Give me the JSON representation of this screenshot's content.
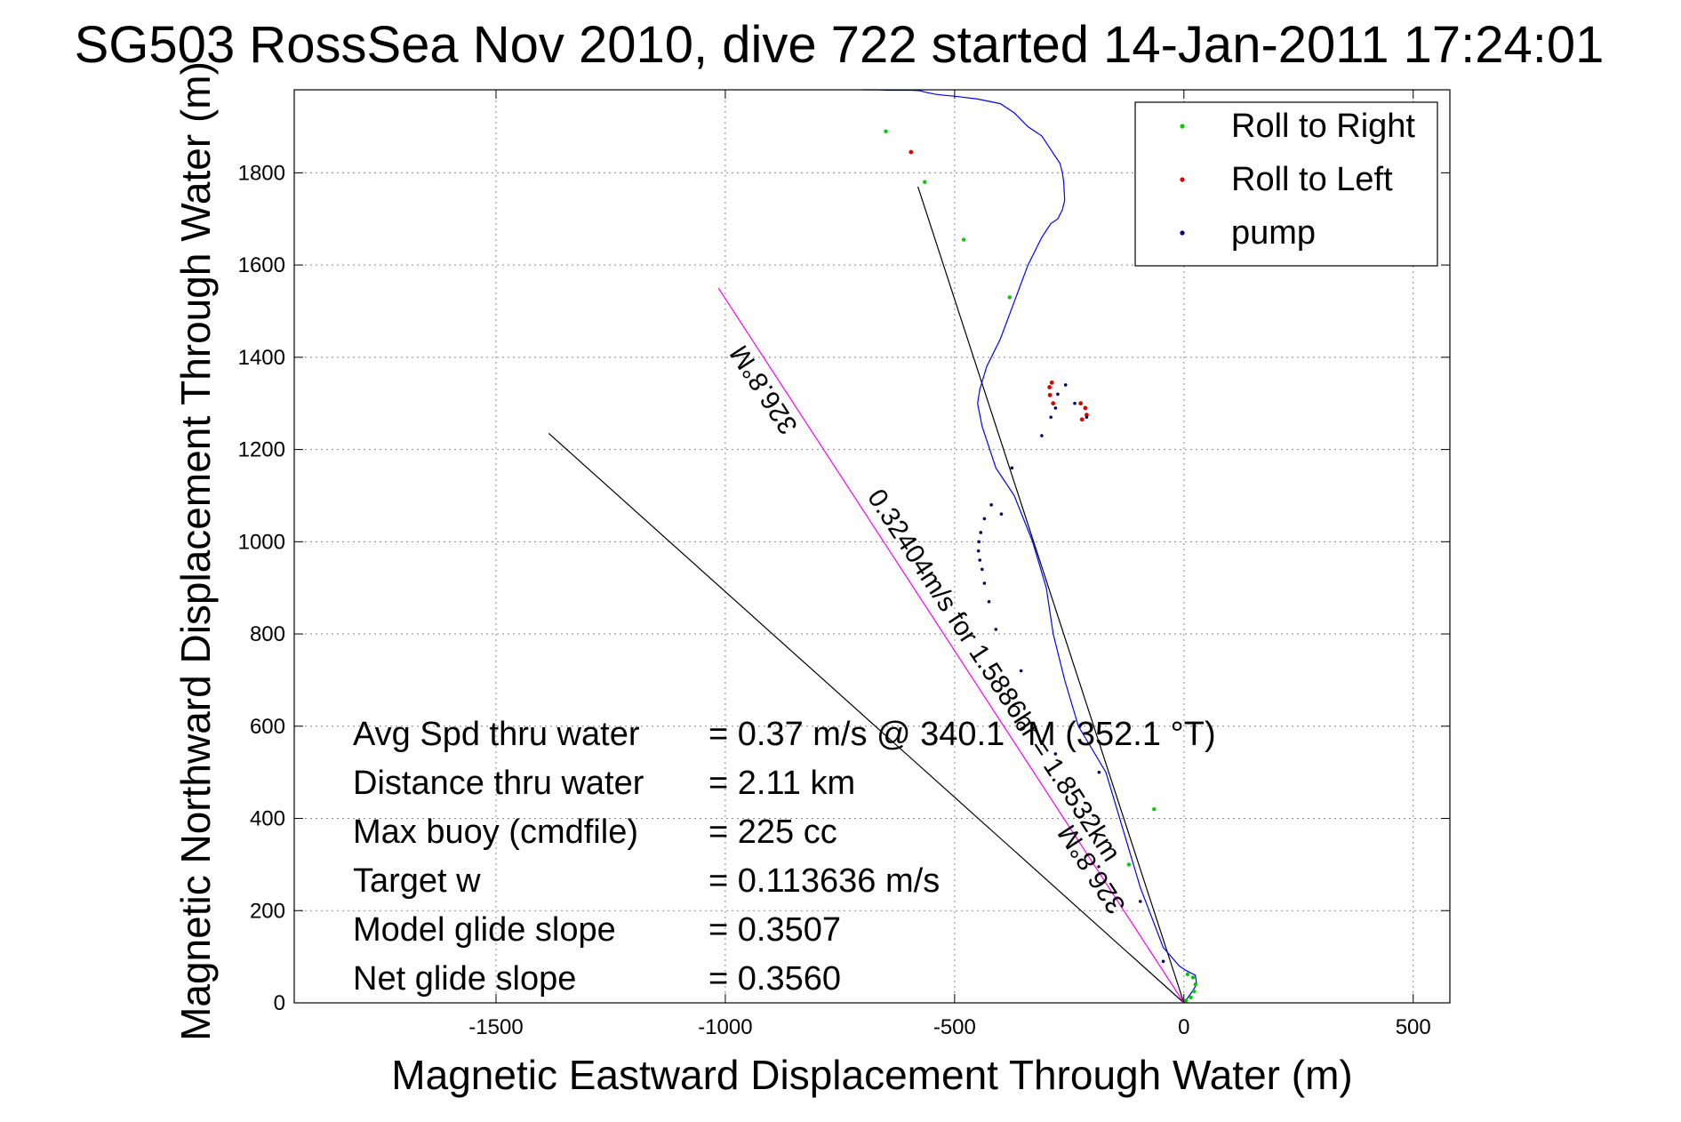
{
  "chart_data": {
    "type": "scatter",
    "title": "SG503 RossSea Nov 2010, dive 722 started 14-Jan-2011 17:24:01",
    "xlabel": "Magnetic Eastward Displacement Through Water (m)",
    "ylabel": "Magnetic Northward Displacement Through Water (m)",
    "xlim": [
      -1940,
      580
    ],
    "ylim": [
      0,
      1980
    ],
    "xticks": [
      -1500,
      -1000,
      -500,
      0,
      500
    ],
    "yticks": [
      0,
      200,
      400,
      600,
      800,
      1000,
      1200,
      1400,
      1600,
      1800
    ],
    "grid": true,
    "legend_position": "top-right",
    "legend": [
      {
        "label": "Roll to Right",
        "color": "#00cc00"
      },
      {
        "label": "Roll to Left",
        "color": "#dd0000"
      },
      {
        "label": "pump",
        "color": "#000066"
      }
    ],
    "track": {
      "name": "glider track",
      "color": "#0000ff",
      "x": [
        0,
        15,
        28,
        25,
        5,
        -10,
        -45,
        -95,
        -170,
        -230,
        -260,
        -285,
        -300,
        -330,
        -370,
        -410,
        -440,
        -450,
        -445,
        -430,
        -400,
        -370,
        -340,
        -310,
        -290,
        -275,
        -265,
        -260,
        -262,
        -265,
        -270,
        -290,
        -310,
        -340,
        -370,
        -400,
        -450,
        -490,
        -540,
        -565,
        -575,
        -595,
        -620,
        -645,
        -670,
        -700
      ],
      "y": [
        0,
        20,
        40,
        60,
        70,
        80,
        120,
        250,
        500,
        600,
        700,
        800,
        900,
        1000,
        1100,
        1160,
        1250,
        1300,
        1330,
        1380,
        1440,
        1520,
        1600,
        1660,
        1690,
        1700,
        1720,
        1740,
        1780,
        1800,
        1820,
        1850,
        1880,
        1900,
        1930,
        1950,
        1960,
        1965,
        1970,
        1975,
        1978,
        1979,
        1979,
        1979,
        1980,
        1980
      ]
    },
    "roll_right_points": {
      "x": [
        5,
        15,
        22,
        25,
        20,
        8,
        -65,
        -120,
        -380,
        -480,
        -565,
        -650
      ],
      "y": [
        5,
        12,
        25,
        40,
        55,
        62,
        420,
        300,
        1530,
        1655,
        1780,
        1890
      ]
    },
    "roll_left_points": {
      "x": [
        -285,
        -292,
        -293,
        -288,
        -225,
        -215,
        -212,
        -222,
        -595
      ],
      "y": [
        1300,
        1318,
        1335,
        1345,
        1300,
        1290,
        1275,
        1265,
        1845
      ]
    },
    "pump_points": {
      "x": [
        -45,
        -95,
        -185,
        -280,
        -355,
        -410,
        -425,
        -435,
        -440,
        -445,
        -448,
        -447,
        -443,
        -435,
        -420,
        -398,
        -375,
        -310,
        -290,
        -280,
        -275,
        -258,
        -238,
        -212
      ],
      "y": [
        90,
        220,
        500,
        540,
        720,
        810,
        870,
        910,
        940,
        960,
        980,
        1000,
        1020,
        1050,
        1080,
        1060,
        1160,
        1230,
        1270,
        1290,
        1320,
        1340,
        1300,
        1270
      ]
    },
    "reference_lines": [
      {
        "name": "heading-line-1",
        "color": "#000000",
        "x": [
          0,
          -1385
        ],
        "y": [
          0,
          1235
        ]
      },
      {
        "name": "heading-line-2",
        "color": "#000000",
        "x": [
          0,
          -580
        ],
        "y": [
          0,
          1770
        ]
      },
      {
        "name": "current-direction",
        "color": "#ff00ff",
        "x": [
          0,
          -1015
        ],
        "y": [
          0,
          1550
        ]
      }
    ],
    "annotations": [
      {
        "text": "0.32404m/s for 1.5886hr = 1.8532km",
        "x": -430,
        "y": 700,
        "rotation": 56.8
      },
      {
        "text": "326.8°M",
        "x": -185,
        "y": 300,
        "rotation": 236.8
      },
      {
        "text": "326.8°M",
        "x": -900,
        "y": 1340,
        "rotation": 236.8
      }
    ],
    "stats": [
      {
        "label": "Avg Spd thru water",
        "value": "=  0.37 m/s @ 340.1 °M (352.1 °T)"
      },
      {
        "label": "Distance thru water",
        "value": "=  2.11 km"
      },
      {
        "label": "Max buoy (cmdfile)",
        "value": "= 225 cc"
      },
      {
        "label": "Target w",
        "value": "= 0.113636 m/s"
      },
      {
        "label": "Model glide slope",
        "value": "= 0.3507"
      },
      {
        "label": "Net glide slope",
        "value": "= 0.3560"
      }
    ]
  }
}
